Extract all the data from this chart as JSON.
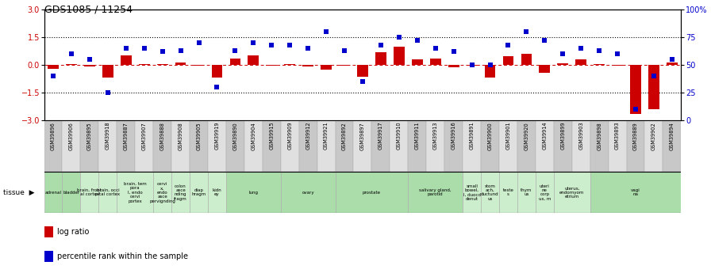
{
  "title": "GDS1085 / 11254",
  "samples": [
    "GSM39896",
    "GSM39906",
    "GSM39895",
    "GSM39918",
    "GSM39887",
    "GSM39907",
    "GSM39888",
    "GSM39908",
    "GSM39905",
    "GSM39919",
    "GSM39890",
    "GSM39904",
    "GSM39915",
    "GSM39909",
    "GSM39912",
    "GSM39921",
    "GSM39892",
    "GSM39897",
    "GSM39917",
    "GSM39910",
    "GSM39911",
    "GSM39913",
    "GSM39916",
    "GSM39891",
    "GSM39900",
    "GSM39901",
    "GSM39920",
    "GSM39914",
    "GSM39899",
    "GSM39903",
    "GSM39898",
    "GSM39893",
    "GSM39889",
    "GSM39902",
    "GSM39894"
  ],
  "log_ratio": [
    -0.2,
    0.05,
    -0.08,
    -0.7,
    0.5,
    0.05,
    0.05,
    0.12,
    -0.05,
    -0.7,
    0.35,
    0.5,
    -0.05,
    0.02,
    -0.08,
    -0.25,
    -0.05,
    -0.65,
    0.7,
    1.0,
    0.3,
    0.35,
    -0.12,
    -0.03,
    -0.7,
    0.45,
    0.6,
    -0.45,
    0.1,
    0.3,
    0.02,
    -0.03,
    -2.65,
    -2.4,
    0.12
  ],
  "percentile": [
    40,
    60,
    55,
    25,
    65,
    65,
    62,
    63,
    70,
    30,
    63,
    70,
    68,
    68,
    65,
    80,
    63,
    35,
    68,
    75,
    72,
    65,
    62,
    50,
    50,
    68,
    80,
    72,
    60,
    65,
    63,
    60,
    10,
    40,
    55
  ],
  "tissue_groups": [
    {
      "label": "adrenal",
      "start": 0,
      "end": 1,
      "color": "#aaddaa"
    },
    {
      "label": "bladder",
      "start": 1,
      "end": 2,
      "color": "#aaddaa"
    },
    {
      "label": "brain, front\nal cortex",
      "start": 2,
      "end": 3,
      "color": "#cceecc"
    },
    {
      "label": "brain, occi\npital cortex",
      "start": 3,
      "end": 4,
      "color": "#cceecc"
    },
    {
      "label": "brain, tem\npora\nl, endo\ncervi\nportex",
      "start": 4,
      "end": 6,
      "color": "#cceecc"
    },
    {
      "label": "cervi\nx,\nendo\nasce\npervignding",
      "start": 6,
      "end": 7,
      "color": "#cceecc"
    },
    {
      "label": "colon\nasce\nnding\nfragm",
      "start": 7,
      "end": 8,
      "color": "#cceecc"
    },
    {
      "label": "diap\nhragm",
      "start": 8,
      "end": 9,
      "color": "#cceecc"
    },
    {
      "label": "kidn\ney",
      "start": 9,
      "end": 10,
      "color": "#cceecc"
    },
    {
      "label": "lung",
      "start": 10,
      "end": 13,
      "color": "#aaddaa"
    },
    {
      "label": "ovary",
      "start": 13,
      "end": 16,
      "color": "#aaddaa"
    },
    {
      "label": "prostate",
      "start": 16,
      "end": 20,
      "color": "#aaddaa"
    },
    {
      "label": "salivary gland,\nparotid",
      "start": 20,
      "end": 23,
      "color": "#aaddaa"
    },
    {
      "label": "small\nbowel,\nI, duocd\ndenut",
      "start": 23,
      "end": 24,
      "color": "#cceecc"
    },
    {
      "label": "stom\nach,\nductund\nus",
      "start": 24,
      "end": 25,
      "color": "#cceecc"
    },
    {
      "label": "teste\ns",
      "start": 25,
      "end": 26,
      "color": "#cceecc"
    },
    {
      "label": "thym\nus",
      "start": 26,
      "end": 27,
      "color": "#cceecc"
    },
    {
      "label": "uteri\nne\ncorp\nus, m",
      "start": 27,
      "end": 28,
      "color": "#cceecc"
    },
    {
      "label": "uterus,\nendomyom\netrium",
      "start": 28,
      "end": 30,
      "color": "#cceecc"
    },
    {
      "label": "vagi\nna",
      "start": 30,
      "end": 35,
      "color": "#aaddaa"
    }
  ],
  "ylim_left": [
    -3,
    3
  ],
  "ylim_right": [
    0,
    100
  ],
  "yticks_left": [
    -3,
    -1.5,
    0,
    1.5,
    3
  ],
  "yticks_right": [
    0,
    25,
    50,
    75,
    100
  ],
  "yticklabels_right": [
    "0",
    "25",
    "50",
    "75",
    "100%"
  ],
  "bar_color": "#cc0000",
  "dot_color": "#0000cc"
}
